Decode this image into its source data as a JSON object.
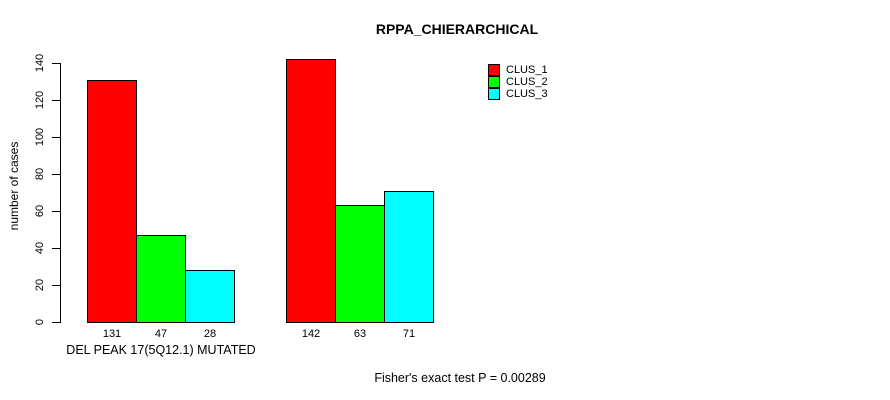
{
  "chart_data": {
    "type": "bar",
    "title": "RPPA_CHIERARCHICAL",
    "ylabel": "number of cases",
    "xlabel": "",
    "ylim": [
      0,
      140
    ],
    "yticks": [
      0,
      20,
      40,
      60,
      80,
      100,
      120,
      140
    ],
    "grid": false,
    "legend_position": "top-right",
    "bar_value_labels": true,
    "categories": [
      "DEL PEAK 17(5Q12.1) MUTATED",
      ""
    ],
    "series": [
      {
        "name": "CLUS_1",
        "color": "#FF0000",
        "values": [
          131,
          142
        ]
      },
      {
        "name": "CLUS_2",
        "color": "#00FF00",
        "values": [
          47,
          63
        ]
      },
      {
        "name": "CLUS_3",
        "color": "#00FFFF",
        "values": [
          28,
          71
        ]
      }
    ]
  },
  "caption": "Fisher's exact test P = 0.00289"
}
